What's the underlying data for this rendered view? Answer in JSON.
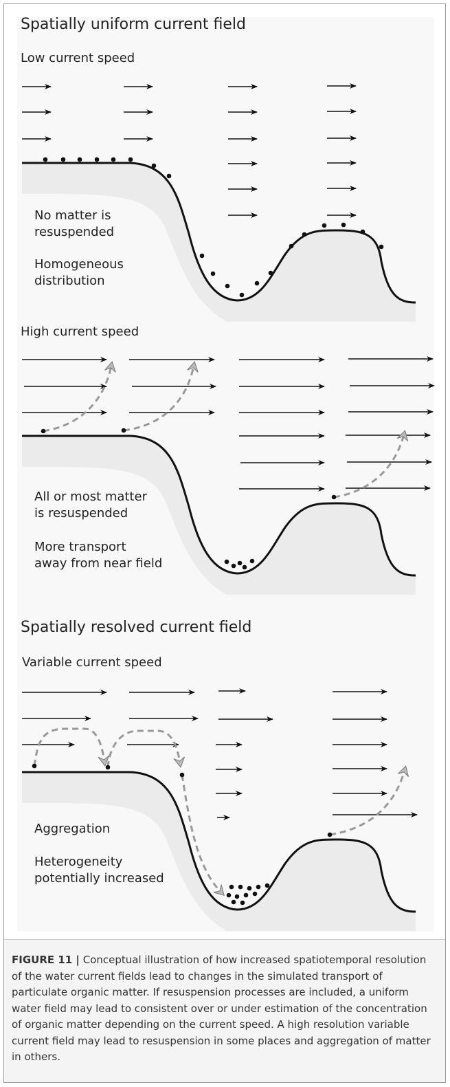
{
  "diagram": {
    "headings": [
      "Spatially uniform current field",
      "Spatially resolved current field"
    ],
    "panels": [
      {
        "label": "Low current speed",
        "notes": [
          [
            "No matter is",
            "resuspended"
          ],
          [
            "Homogeneous",
            "distribution"
          ]
        ]
      },
      {
        "label": "High current speed",
        "notes": [
          [
            "All or most matter",
            "is resuspended"
          ],
          [
            "More transport",
            "away from near field"
          ]
        ]
      },
      {
        "label": "Variable current speed",
        "notes": [
          [
            "Aggregation"
          ],
          [
            "Heterogeneity",
            "potentially increased"
          ]
        ]
      }
    ]
  },
  "caption": {
    "label": "FIGURE 11 |",
    "text": "Conceptual illustration of how increased spatiotemporal resolution of the water current fields lead to changes in the simulated transport of particulate organic matter. If resuspension processes are included, a uniform water field may lead to consistent over or under estimation of the concentration of organic matter depending on the current speed. A high resolution variable current field may lead to resuspension in some places and aggregation of matter in others."
  }
}
